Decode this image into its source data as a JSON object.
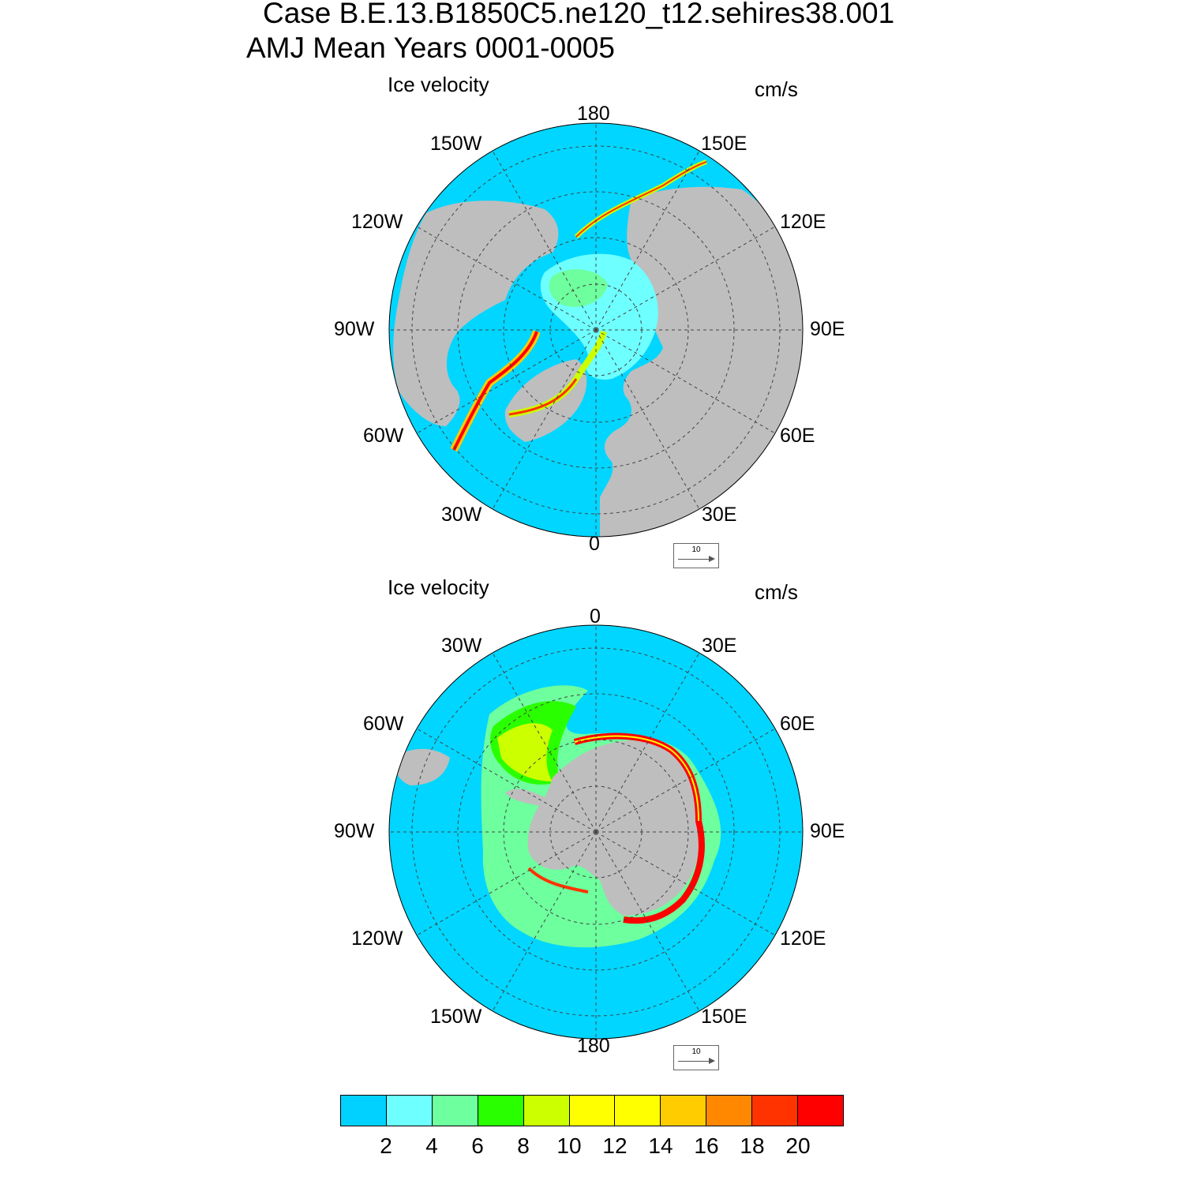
{
  "title": {
    "line1": "Case B.E.13.B1850C5.ne120_t12.sehires38.001",
    "line2": "AMJ Mean   Years 0001-0005"
  },
  "colors": {
    "ocean": "#00d6ff",
    "land": "#bebebe",
    "grid": "#444444"
  },
  "north_panel": {
    "variable": "Ice velocity",
    "units": "cm/s",
    "lon_labels": {
      "top": "180",
      "bottom": "0",
      "left": "90W",
      "right": "90E",
      "upper_left_1": "150W",
      "upper_left_2": "120W",
      "lower_left_1": "60W",
      "lower_left_2": "30W",
      "upper_right_1": "150E",
      "upper_right_2": "120E",
      "lower_right_1": "60E",
      "lower_right_2": "30E"
    },
    "reference_vector": "10"
  },
  "south_panel": {
    "variable": "Ice velocity",
    "units": "cm/s",
    "lon_labels": {
      "top": "0",
      "bottom": "180",
      "left": "90W",
      "right": "90E",
      "upper_left_1": "30W",
      "upper_left_2": "60W",
      "lower_left_1": "120W",
      "lower_left_2": "150W",
      "upper_right_1": "30E",
      "upper_right_2": "60E",
      "lower_right_1": "120E",
      "lower_right_2": "150E"
    },
    "reference_vector": "10"
  },
  "colorbar": {
    "colors": [
      "#00d1ff",
      "#6effff",
      "#6eff9e",
      "#2aff00",
      "#ccff00",
      "#ffff00",
      "#ffff00",
      "#ffcc00",
      "#ff8800",
      "#ff3300",
      "#ff0000"
    ],
    "tick_labels": [
      "2",
      "4",
      "6",
      "8",
      "10",
      "12",
      "14",
      "16",
      "18",
      "20"
    ]
  }
}
